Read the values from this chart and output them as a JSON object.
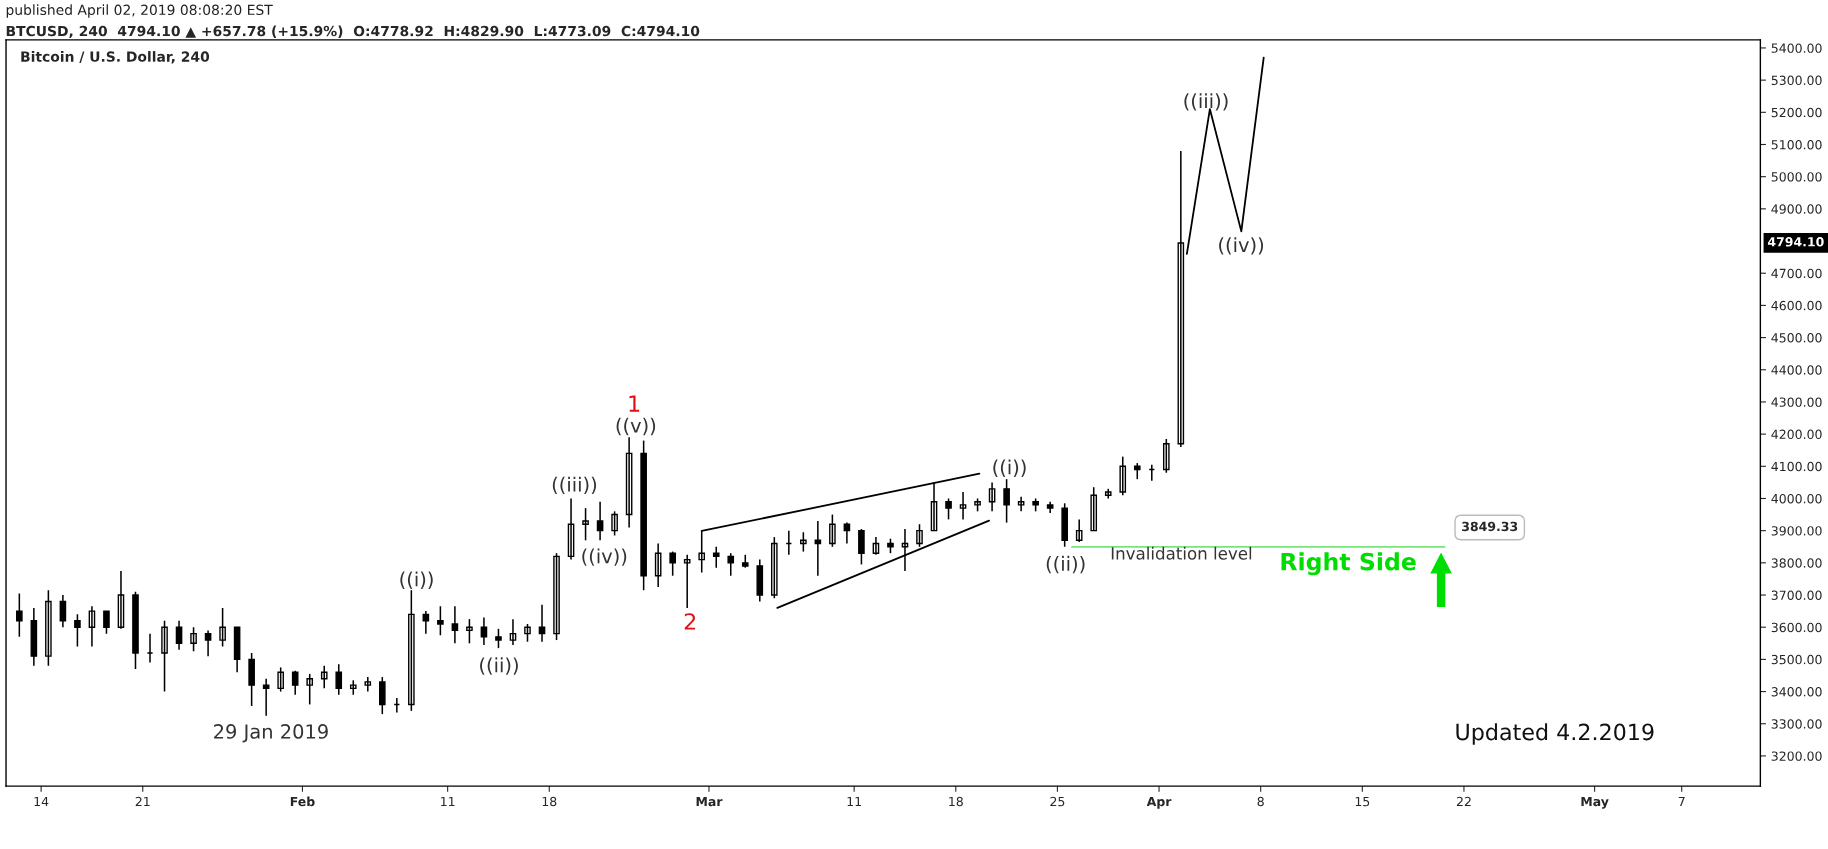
{
  "chart_data": {
    "type": "candlestick",
    "title": "Bitcoin / U.S. Dollar, 240",
    "subtitle": "BTCUSD, 240  4794.10 ▲ +657.78 (+15.9%)  O:4778.92  H:4829.90  L:4773.09  C:4794.10",
    "color": "#000000",
    "x": [
      "2019-01-12T12:00",
      "2019-01-13T12:00",
      "2019-01-14T12:00",
      "2019-01-15T12:00",
      "2019-01-16T12:00",
      "2019-01-17T12:00",
      "2019-01-18T12:00",
      "2019-01-19T12:00",
      "2019-01-20T12:00",
      "2019-01-21T12:00",
      "2019-01-22T12:00",
      "2019-01-23T12:00",
      "2019-01-24T12:00",
      "2019-01-25T12:00",
      "2019-01-26T12:00",
      "2019-01-27T12:00",
      "2019-01-28T12:00",
      "2019-01-29T12:00",
      "2019-01-30T12:00",
      "2019-01-31T12:00",
      "2019-02-01T12:00",
      "2019-02-02T12:00",
      "2019-02-03T12:00",
      "2019-02-04T12:00",
      "2019-02-05T12:00",
      "2019-02-06T12:00",
      "2019-02-07T12:00",
      "2019-02-08T12:00",
      "2019-02-09T12:00",
      "2019-02-10T12:00",
      "2019-02-11T12:00",
      "2019-02-12T12:00",
      "2019-02-13T12:00",
      "2019-02-14T12:00",
      "2019-02-15T12:00",
      "2019-02-16T12:00",
      "2019-02-17T12:00",
      "2019-02-18T12:00",
      "2019-02-19T12:00",
      "2019-02-20T12:00",
      "2019-02-21T12:00",
      "2019-02-22T12:00",
      "2019-02-23T12:00",
      "2019-02-24T12:00",
      "2019-02-25T12:00",
      "2019-02-26T12:00",
      "2019-02-27T12:00",
      "2019-02-28T12:00",
      "2019-03-01T12:00",
      "2019-03-02T12:00",
      "2019-03-03T12:00",
      "2019-03-04T12:00",
      "2019-03-05T12:00",
      "2019-03-06T12:00",
      "2019-03-07T12:00",
      "2019-03-08T12:00",
      "2019-03-09T12:00",
      "2019-03-10T12:00",
      "2019-03-11T12:00",
      "2019-03-12T12:00",
      "2019-03-13T12:00",
      "2019-03-14T12:00",
      "2019-03-15T12:00",
      "2019-03-16T12:00",
      "2019-03-17T12:00",
      "2019-03-18T12:00",
      "2019-03-19T12:00",
      "2019-03-20T12:00",
      "2019-03-21T12:00",
      "2019-03-22T12:00",
      "2019-03-23T12:00",
      "2019-03-24T12:00",
      "2019-03-25T12:00",
      "2019-03-26T12:00",
      "2019-03-27T12:00",
      "2019-03-28T12:00",
      "2019-03-29T12:00",
      "2019-03-30T12:00",
      "2019-03-31T12:00",
      "2019-04-01T12:00",
      "2019-04-02T12:00"
    ],
    "ohlc": [
      [
        3650,
        3705,
        3570,
        3620
      ],
      [
        3620,
        3660,
        3480,
        3510
      ],
      [
        3510,
        3715,
        3480,
        3680
      ],
      [
        3680,
        3700,
        3600,
        3620
      ],
      [
        3620,
        3640,
        3540,
        3600
      ],
      [
        3600,
        3665,
        3540,
        3650
      ],
      [
        3650,
        3650,
        3580,
        3600
      ],
      [
        3600,
        3775,
        3595,
        3700
      ],
      [
        3700,
        3710,
        3470,
        3520
      ],
      [
        3520,
        3580,
        3490,
        3520
      ],
      [
        3520,
        3620,
        3400,
        3600
      ],
      [
        3600,
        3620,
        3530,
        3550
      ],
      [
        3550,
        3600,
        3525,
        3580
      ],
      [
        3580,
        3590,
        3510,
        3560
      ],
      [
        3560,
        3660,
        3540,
        3600
      ],
      [
        3600,
        3600,
        3460,
        3500
      ],
      [
        3500,
        3520,
        3355,
        3420
      ],
      [
        3420,
        3440,
        3325,
        3410
      ],
      [
        3410,
        3475,
        3400,
        3460
      ],
      [
        3460,
        3465,
        3390,
        3420
      ],
      [
        3420,
        3455,
        3360,
        3440
      ],
      [
        3440,
        3480,
        3410,
        3460
      ],
      [
        3460,
        3485,
        3390,
        3410
      ],
      [
        3410,
        3435,
        3390,
        3420
      ],
      [
        3420,
        3445,
        3400,
        3430
      ],
      [
        3430,
        3445,
        3330,
        3360
      ],
      [
        3360,
        3380,
        3335,
        3360
      ],
      [
        3360,
        3715,
        3340,
        3640
      ],
      [
        3640,
        3650,
        3580,
        3620
      ],
      [
        3620,
        3665,
        3575,
        3610
      ],
      [
        3610,
        3665,
        3550,
        3590
      ],
      [
        3590,
        3625,
        3550,
        3600
      ],
      [
        3600,
        3630,
        3545,
        3570
      ],
      [
        3570,
        3595,
        3535,
        3560
      ],
      [
        3560,
        3625,
        3545,
        3580
      ],
      [
        3580,
        3610,
        3555,
        3600
      ],
      [
        3600,
        3670,
        3555,
        3580
      ],
      [
        3580,
        3830,
        3560,
        3820
      ],
      [
        3820,
        4000,
        3810,
        3920
      ],
      [
        3920,
        3970,
        3870,
        3930
      ],
      [
        3930,
        3990,
        3870,
        3900
      ],
      [
        3900,
        3960,
        3885,
        3950
      ],
      [
        3950,
        4190,
        3910,
        4140
      ],
      [
        4140,
        4180,
        3715,
        3760
      ],
      [
        3760,
        3860,
        3725,
        3830
      ],
      [
        3830,
        3835,
        3760,
        3800
      ],
      [
        3800,
        3825,
        3660,
        3810
      ],
      [
        3810,
        3900,
        3770,
        3830
      ],
      [
        3830,
        3850,
        3785,
        3820
      ],
      [
        3820,
        3830,
        3760,
        3800
      ],
      [
        3800,
        3825,
        3785,
        3790
      ],
      [
        3790,
        3810,
        3680,
        3700
      ],
      [
        3700,
        3880,
        3690,
        3860
      ],
      [
        3860,
        3900,
        3825,
        3860
      ],
      [
        3860,
        3895,
        3835,
        3870
      ],
      [
        3870,
        3930,
        3760,
        3860
      ],
      [
        3860,
        3950,
        3850,
        3920
      ],
      [
        3920,
        3925,
        3860,
        3900
      ],
      [
        3900,
        3905,
        3795,
        3830
      ],
      [
        3830,
        3880,
        3825,
        3860
      ],
      [
        3860,
        3875,
        3830,
        3850
      ],
      [
        3850,
        3905,
        3775,
        3860
      ],
      [
        3860,
        3920,
        3850,
        3900
      ],
      [
        3900,
        4050,
        3900,
        3990
      ],
      [
        3990,
        4000,
        3935,
        3970
      ],
      [
        3970,
        4020,
        3935,
        3980
      ],
      [
        3980,
        4000,
        3960,
        3990
      ],
      [
        3990,
        4050,
        3960,
        4030
      ],
      [
        4030,
        4060,
        3925,
        3980
      ],
      [
        3980,
        4005,
        3960,
        3990
      ],
      [
        3990,
        4000,
        3960,
        3980
      ],
      [
        3980,
        3990,
        3955,
        3970
      ],
      [
        3970,
        3985,
        3850,
        3870
      ],
      [
        3870,
        3935,
        3865,
        3900
      ],
      [
        3900,
        4035,
        3900,
        4010
      ],
      [
        4010,
        4030,
        4000,
        4020
      ],
      [
        4020,
        4130,
        4010,
        4100
      ],
      [
        4100,
        4110,
        4060,
        4090
      ],
      [
        4090,
        4105,
        4055,
        4090
      ],
      [
        4090,
        4185,
        4080,
        4170
      ],
      [
        4170,
        5080,
        4160,
        4794.1
      ]
    ],
    "series": [
      {
        "type": "line",
        "color": "#000000",
        "x": [
          "2019-04-02T22:00",
          "2019-04-04T12:00",
          "2019-04-06T16:00",
          "2019-04-08T05:00"
        ],
        "values": [
          4760,
          5210,
          4830,
          5370
        ]
      },
      {
        "type": "line",
        "color": "#000000",
        "x": [
          "2019-02-28T12:00",
          "2019-03-19T15:00"
        ],
        "values": [
          3899,
          4077
        ]
      },
      {
        "type": "line",
        "color": "#000000",
        "x": [
          "2019-03-05T17:00",
          "2019-03-20T07:00"
        ],
        "values": [
          3660,
          3931
        ]
      },
      {
        "type": "line",
        "color": "#7be37b",
        "x": [
          "2019-03-26T00:00",
          "2019-04-20T16:00"
        ],
        "values": [
          3849.33,
          3849.33
        ],
        "value_labels": [
          null,
          "3849.33"
        ]
      }
    ],
    "xlim": [
      "2019-01-11T14:00",
      "2019-05-12T10:00"
    ],
    "xticks": [
      {
        "value": "2019-01-14",
        "label": "14"
      },
      {
        "value": "2019-01-21",
        "label": "21"
      },
      {
        "value": "2019-02-01",
        "label": "Feb"
      },
      {
        "value": "2019-02-11",
        "label": "11"
      },
      {
        "value": "2019-02-18",
        "label": "18"
      },
      {
        "value": "2019-03-01",
        "label": "Mar"
      },
      {
        "value": "2019-03-11",
        "label": "11"
      },
      {
        "value": "2019-03-18",
        "label": "18"
      },
      {
        "value": "2019-03-25",
        "label": "25"
      },
      {
        "value": "2019-04-01",
        "label": "Apr"
      },
      {
        "value": "2019-04-08",
        "label": "8"
      },
      {
        "value": "2019-04-15",
        "label": "15"
      },
      {
        "value": "2019-04-22",
        "label": "22"
      },
      {
        "value": "2019-05-01",
        "label": "May"
      },
      {
        "value": "2019-05-07",
        "label": "7"
      }
    ],
    "ylim": [
      3106,
      5425
    ],
    "yticks": [
      {
        "value": 3200,
        "label": "3200.00"
      },
      {
        "value": 3300,
        "label": "3300.00"
      },
      {
        "value": 3400,
        "label": "3400.00"
      },
      {
        "value": 3500,
        "label": "3500.00"
      },
      {
        "value": 3600,
        "label": "3600.00"
      },
      {
        "value": 3700,
        "label": "3700.00"
      },
      {
        "value": 3800,
        "label": "3800.00"
      },
      {
        "value": 3900,
        "label": "3900.00"
      },
      {
        "value": 4000,
        "label": "4000.00"
      },
      {
        "value": 4100,
        "label": "4100.00"
      },
      {
        "value": 4200,
        "label": "4200.00"
      },
      {
        "value": 4300,
        "label": "4300.00"
      },
      {
        "value": 4400,
        "label": "4400.00"
      },
      {
        "value": 4500,
        "label": "4500.00"
      },
      {
        "value": 4600,
        "label": "4600.00"
      },
      {
        "value": 4700,
        "label": "4700.00"
      },
      {
        "value": 4900,
        "label": "4900.00"
      },
      {
        "value": 5000,
        "label": "5000.00"
      },
      {
        "value": 5100,
        "label": "5100.00"
      },
      {
        "value": 5200,
        "label": "5200.00"
      },
      {
        "value": 5300,
        "label": "5300.00"
      },
      {
        "value": 5400,
        "label": "5400.00"
      }
    ],
    "annotations": [
      "published April 02, 2019 08:08:20 EST",
      "Updated 4.2.2019",
      "4794.10",
      "29 Jan 2019",
      "((i))",
      "((ii))",
      "((iii))",
      "((iv))",
      "((v))",
      "1",
      "2",
      "((i))",
      "((ii))",
      "Invalidation level",
      "Right Side",
      "((iii))",
      "((iv))"
    ]
  }
}
